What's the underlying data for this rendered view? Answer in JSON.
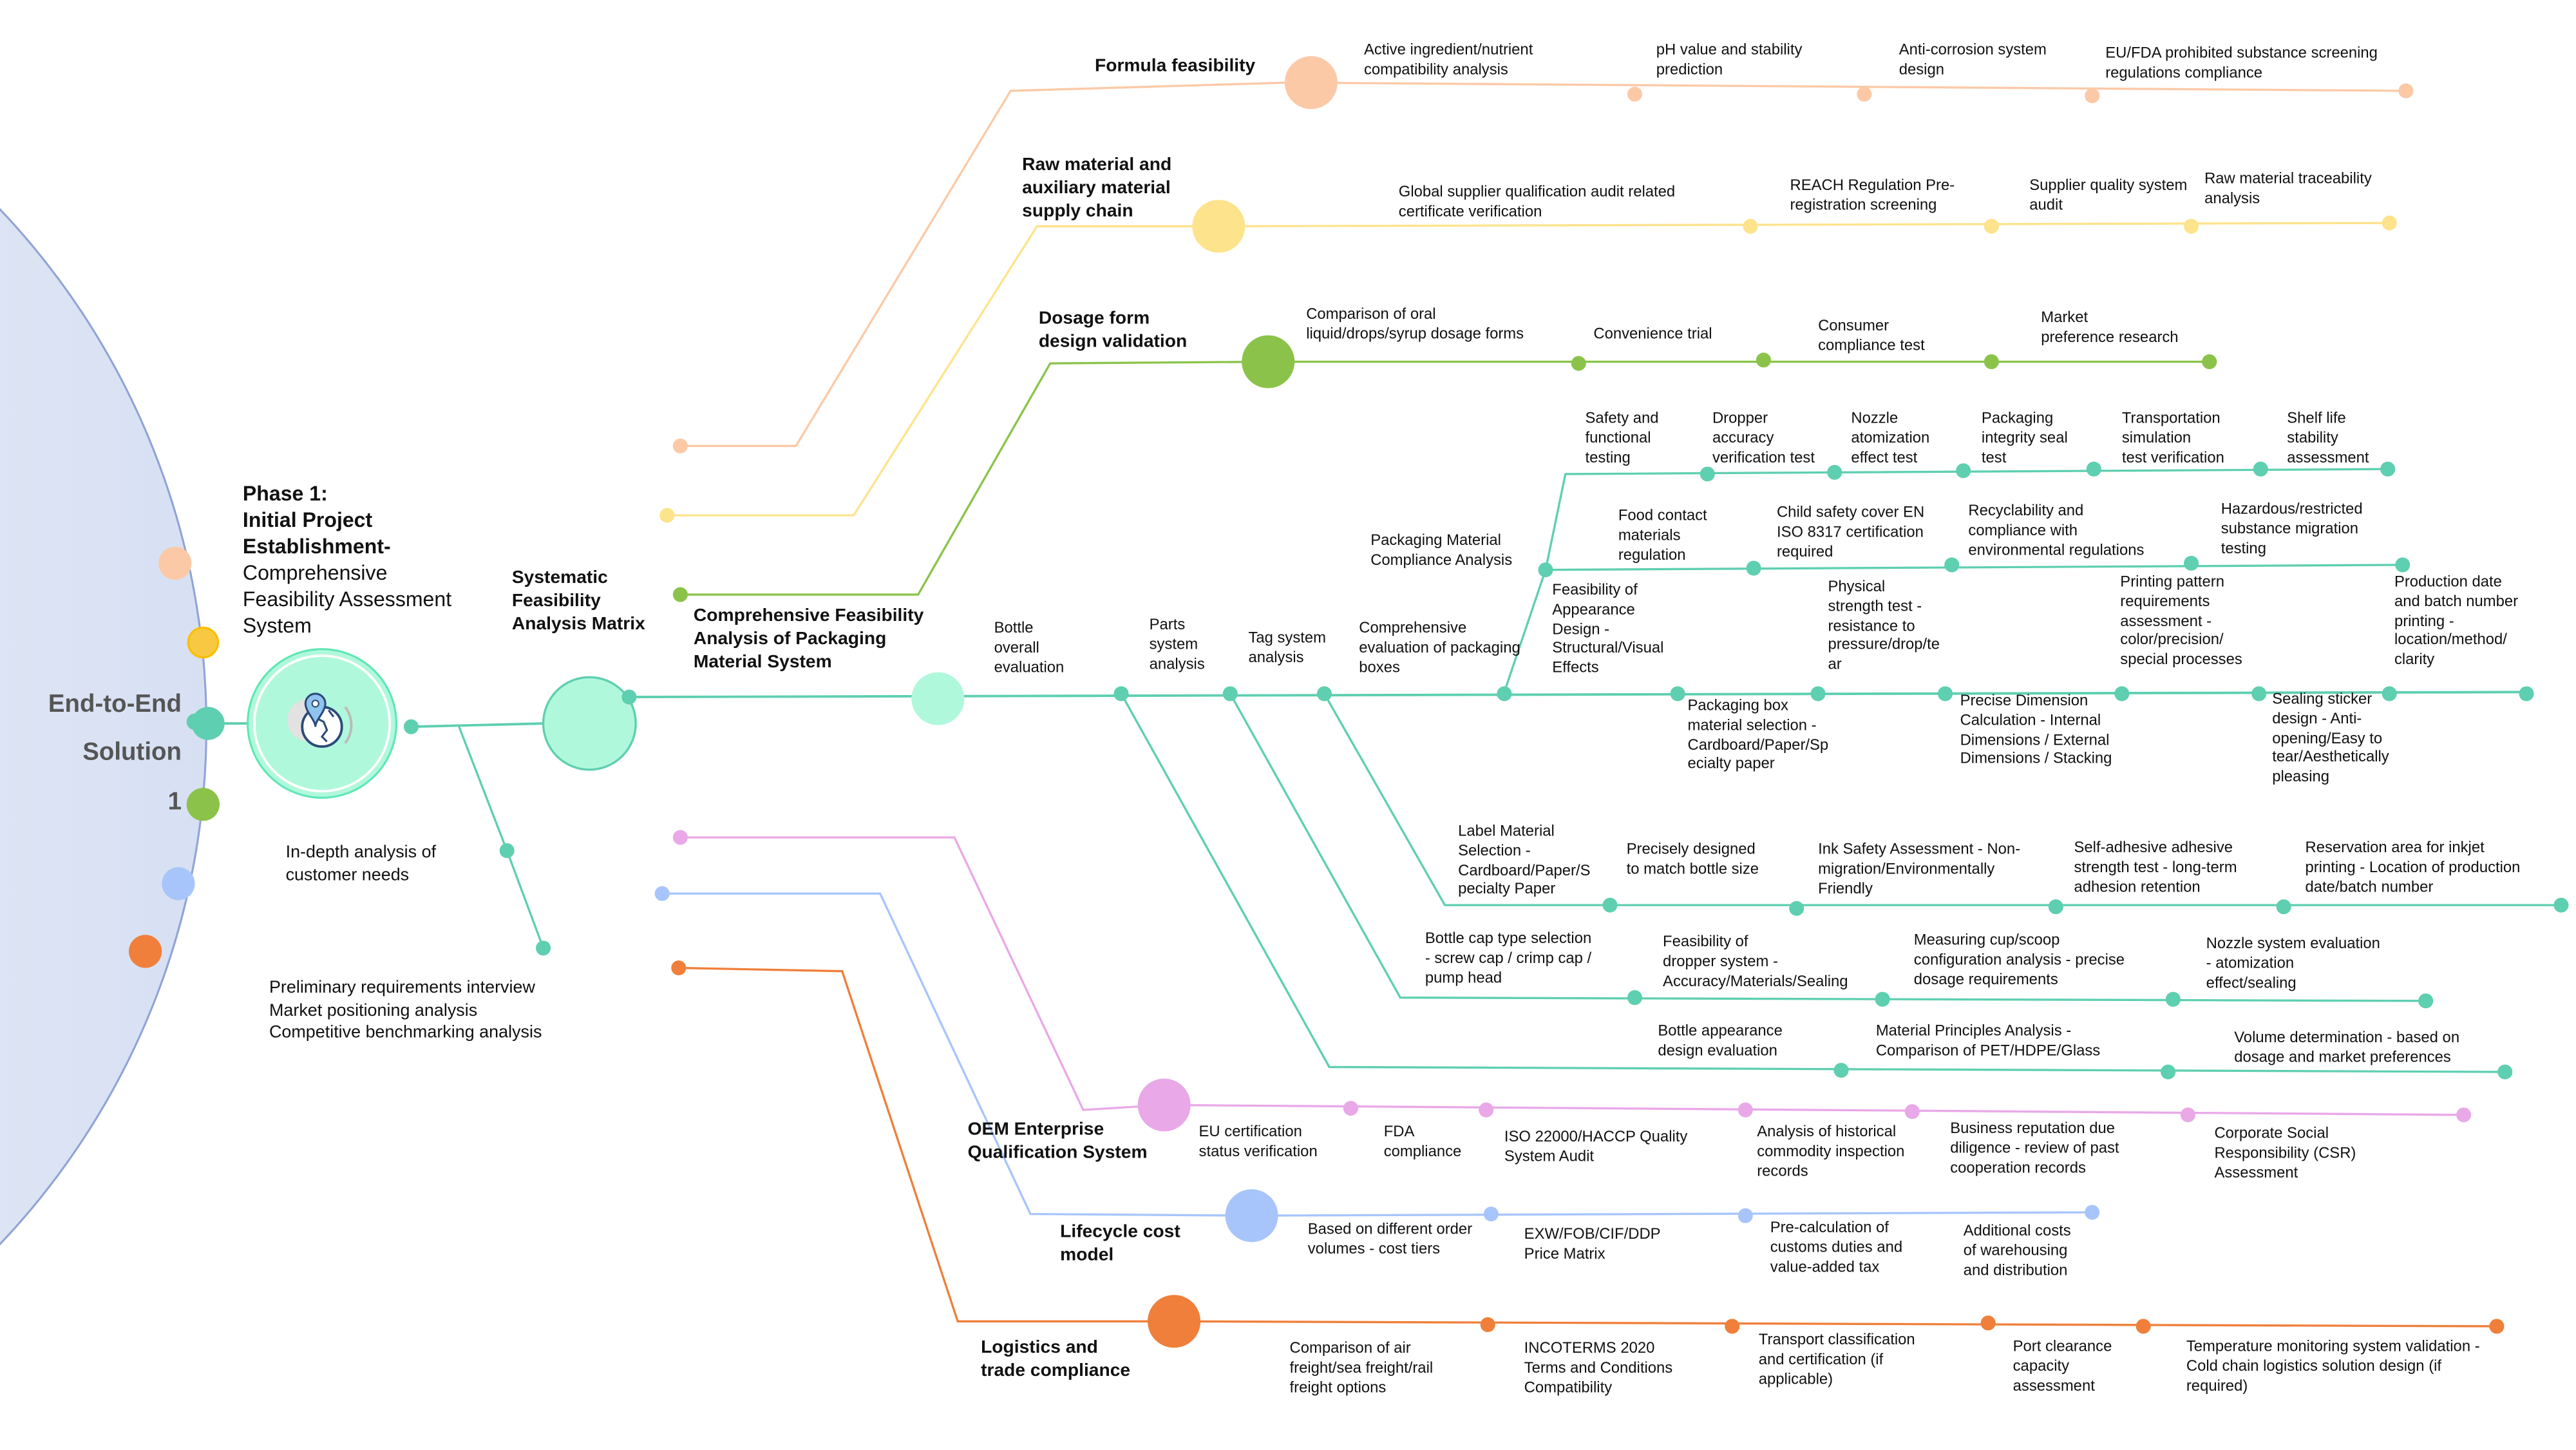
{
  "hub": {
    "line1": "End-to-End",
    "line2": "Solution",
    "line3": "1"
  },
  "phase": {
    "heading": "Phase 1:\nInitial Project\nEstablishment-",
    "subheading": "Comprehensive\nFeasibility Assessment\nSystem",
    "icon": "globe-location-icon"
  },
  "needs": {
    "label": "In-depth analysis of\ncustomer needs",
    "activities": "Preliminary requirements interview\nMarket positioning analysis\nCompetitive benchmarking analysis"
  },
  "matrix": {
    "label": "Systematic\nFeasibility\nAnalysis Matrix"
  },
  "colors": {
    "teal": "#5ecfb0",
    "peach": "#fcc9a6",
    "yellow": "#fde38c",
    "green": "#8bc34a",
    "pink": "#e9a8e8",
    "blue": "#a8c5fb",
    "orange": "#ef7f3a",
    "hub_stroke": "#8fa3d6"
  },
  "formula": {
    "title": "Formula feasibility",
    "items": [
      "Active ingredient/nutrient\ncompatibility analysis",
      "pH value and stability\nprediction",
      "Anti-corrosion system\ndesign",
      "EU/FDA prohibited substance screening\nregulations compliance"
    ]
  },
  "raw": {
    "title": "Raw material and\nauxiliary material\nsupply chain",
    "items": [
      "Global supplier qualification audit related\ncertificate verification",
      "REACH Regulation Pre-\nregistration screening",
      "Supplier quality system\naudit",
      "Raw material traceability\nanalysis"
    ]
  },
  "dosage": {
    "title": "Dosage form\ndesign validation",
    "items": [
      "Comparison of oral\nliquid/drops/syrup dosage forms",
      "Convenience trial",
      "Consumer\ncompliance test",
      "Market\npreference research"
    ]
  },
  "packaging": {
    "title": "Comprehensive Feasibility\nAnalysis of Packaging\nMaterial System",
    "bottle": "Bottle\noverall\nevaluation",
    "parts": "Parts\nsystem\nanalysis",
    "tag": "Tag system\nanalysis",
    "boxes": "Comprehensive\nevaluation of packaging\nboxes",
    "box_items": [
      "Feasibility of\nAppearance\nDesign -\nStructural/Visual\nEffects",
      "Packaging box\nmaterial selection -\nCardboard/Paper/Sp\necialty paper",
      "Physical\nstrength test -\nresistance to\npressure/drop/te\nar",
      "Precise Dimension\nCalculation - Internal\nDimensions / External\nDimensions / Stacking",
      "Printing pattern\nrequirements\nassessment -\ncolor/precision/\nspecial processes",
      "Sealing sticker\ndesign - Anti-\nopening/Easy to\ntear/Aesthetically\npleasing",
      "Production date\nand batch number\nprinting -\nlocation/method/\nclarity"
    ],
    "compliance": "Packaging Material\nCompliance Analysis",
    "compliance_items": [
      "Food contact\nmaterials\nregulation",
      "Child safety cover EN\nISO 8317 certification\nrequired",
      "Recyclability and\ncompliance with\nenvironmental regulations",
      "Hazardous/restricted\nsubstance migration\ntesting"
    ],
    "testing_items": [
      "Safety and\nfunctional\ntesting",
      "Dropper\naccuracy\nverification test",
      "Nozzle\natomization\neffect test",
      "Packaging\nintegrity seal\ntest",
      "Transportation\nsimulation\ntest verification",
      "Shelf life\nstability\nassessment"
    ],
    "label_items": [
      "Label Material\nSelection -\nCardboard/Paper/S\npecialty Paper",
      "Precisely designed\nto match bottle size",
      "Ink Safety Assessment - Non-\nmigration/Environmentally\nFriendly",
      "Self-adhesive adhesive\nstrength test - long-term\nadhesion retention",
      "Reservation area for inkjet\nprinting - Location of production\ndate/batch number"
    ],
    "parts_items": [
      "Bottle cap type selection\n- screw cap / crimp cap /\npump head",
      "Feasibility of\ndropper system -\nAccuracy/Materials/Sealing",
      "Measuring cup/scoop\nconfiguration analysis - precise\ndosage requirements",
      "Nozzle system evaluation\n- atomization\neffect/sealing"
    ],
    "bottle_items": [
      "Bottle appearance\ndesign evaluation",
      "Material Principles Analysis -\nComparison of PET/HDPE/Glass",
      "Volume determination - based on\ndosage and market preferences"
    ]
  },
  "oem": {
    "title": "OEM Enterprise\nQualification System",
    "items": [
      "EU certification\nstatus verification",
      "FDA\ncompliance",
      "ISO 22000/HACCP Quality\nSystem Audit",
      "Analysis of historical\ncommodity inspection\nrecords",
      "Business reputation due\ndiligence - review of past\ncooperation records",
      "Corporate Social\nResponsibility (CSR)\nAssessment"
    ]
  },
  "lifecycle": {
    "title": "Lifecycle cost\nmodel",
    "items": [
      "Based on different order\nvolumes - cost tiers",
      "EXW/FOB/CIF/DDP\nPrice Matrix",
      "Pre-calculation of\ncustoms duties and\nvalue-added tax",
      "Additional costs\nof warehousing\nand distribution"
    ]
  },
  "logistics": {
    "title": "Logistics and\ntrade compliance",
    "items": [
      "Comparison of air\nfreight/sea freight/rail\nfreight options",
      "INCOTERMS 2020\nTerms and Conditions\nCompatibility",
      "Transport classification\nand certification (if\napplicable)",
      "Port clearance\ncapacity\nassessment",
      "Temperature monitoring system validation -\nCold chain logistics solution design (if\nrequired)"
    ]
  }
}
